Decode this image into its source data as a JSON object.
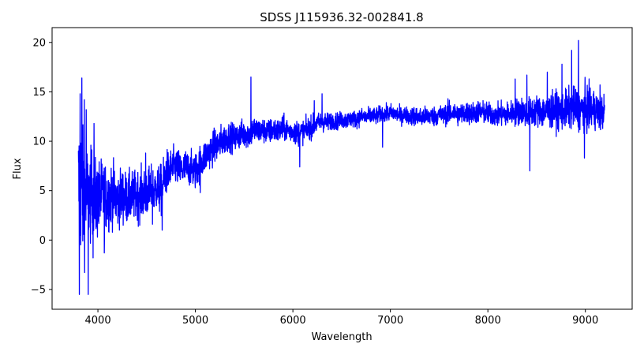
{
  "chart_data": {
    "type": "line",
    "title": "SDSS J115936.32-002841.8",
    "xlabel": "Wavelength",
    "ylabel": "Flux",
    "xlim": [
      3530,
      9480
    ],
    "ylim": [
      -7,
      21.5
    ],
    "xticks": [
      4000,
      5000,
      6000,
      7000,
      8000,
      9000
    ],
    "yticks": [
      -5,
      0,
      5,
      10,
      15,
      20
    ],
    "grid": false,
    "legend": "none",
    "series": [
      {
        "color": "#0000ff",
        "x": [
          3800,
          3815,
          3830,
          3850,
          3875,
          3900,
          3925,
          3950,
          3975,
          4000,
          4050,
          4100,
          4150,
          4200,
          4250,
          4300,
          4350,
          4400,
          4450,
          4500,
          4550,
          4600,
          4650,
          4700,
          4750,
          4800,
          4850,
          4900,
          4950,
          5000,
          5050,
          5100,
          5150,
          5200,
          5250,
          5300,
          5350,
          5400,
          5450,
          5500,
          5550,
          5580,
          5600,
          5650,
          5700,
          5750,
          5800,
          5850,
          5900,
          5950,
          6000,
          6050,
          6100,
          6150,
          6200,
          6250,
          6300,
          6350,
          6400,
          6450,
          6500,
          6550,
          6600,
          6650,
          6700,
          6750,
          6800,
          6850,
          6900,
          6950,
          7000,
          7050,
          7100,
          7150,
          7200,
          7250,
          7300,
          7350,
          7400,
          7450,
          7500,
          7550,
          7600,
          7650,
          7700,
          7750,
          7800,
          7850,
          7900,
          7950,
          8000,
          8050,
          8100,
          8150,
          8200,
          8250,
          8300,
          8350,
          8400,
          8450,
          8500,
          8550,
          8600,
          8650,
          8700,
          8750,
          8800,
          8850,
          8900,
          8950,
          9000,
          9050,
          9100,
          9150,
          9200
        ],
        "y": [
          5.5,
          4.5,
          6.0,
          4.0,
          4.8,
          4.2,
          4.5,
          5.0,
          3.8,
          4.2,
          4.6,
          4.2,
          4.8,
          4.0,
          4.5,
          4.2,
          4.4,
          4.5,
          4.6,
          4.8,
          5.0,
          5.2,
          5.0,
          6.8,
          7.2,
          7.5,
          7.0,
          7.3,
          7.2,
          7.0,
          7.8,
          8.5,
          9.0,
          9.5,
          9.8,
          10.2,
          10.5,
          10.3,
          10.6,
          10.8,
          10.7,
          11.0,
          11.2,
          11.0,
          11.1,
          10.9,
          11.2,
          11.0,
          11.3,
          11.1,
          11.0,
          10.8,
          11.0,
          11.2,
          11.5,
          11.8,
          12.0,
          11.9,
          12.1,
          12.0,
          12.2,
          12.1,
          12.3,
          12.2,
          12.5,
          12.4,
          12.6,
          12.5,
          12.8,
          12.7,
          12.9,
          12.8,
          12.6,
          12.7,
          12.5,
          12.6,
          12.4,
          12.5,
          12.6,
          12.5,
          12.7,
          12.6,
          12.8,
          12.9,
          12.7,
          12.8,
          12.9,
          12.8,
          13.0,
          12.9,
          12.8,
          12.7,
          12.6,
          12.8,
          12.7,
          12.9,
          13.0,
          13.1,
          12.8,
          13.0,
          13.1,
          13.0,
          12.9,
          13.1,
          13.2,
          13.0,
          13.2,
          13.3,
          13.4,
          13.2,
          13.3,
          13.1,
          13.2,
          12.8,
          13.0
        ],
        "noise": [
          5.0,
          5.5,
          5.0,
          4.5,
          4.0,
          3.5,
          3.2,
          3.0,
          3.0,
          2.8,
          2.5,
          2.4,
          2.2,
          2.0,
          2.0,
          1.8,
          1.8,
          1.8,
          1.8,
          1.8,
          1.7,
          1.6,
          1.8,
          1.6,
          1.4,
          1.4,
          1.3,
          1.3,
          1.2,
          1.3,
          1.3,
          1.2,
          1.2,
          1.2,
          1.2,
          1.1,
          1.0,
          1.0,
          1.0,
          1.0,
          1.0,
          1.0,
          1.0,
          0.9,
          0.9,
          0.9,
          0.9,
          0.9,
          0.9,
          0.8,
          0.8,
          0.9,
          0.8,
          0.8,
          0.8,
          0.7,
          0.7,
          0.7,
          0.6,
          0.6,
          0.6,
          0.6,
          0.6,
          0.6,
          0.6,
          0.6,
          0.6,
          0.6,
          0.6,
          0.6,
          0.6,
          0.6,
          0.6,
          0.6,
          0.6,
          0.7,
          0.7,
          0.7,
          0.7,
          0.7,
          0.7,
          0.7,
          0.7,
          0.8,
          0.8,
          0.8,
          0.8,
          0.8,
          0.8,
          0.8,
          0.8,
          0.8,
          0.8,
          0.9,
          0.9,
          0.9,
          1.0,
          1.0,
          1.0,
          1.1,
          1.1,
          1.2,
          1.2,
          1.2,
          1.3,
          1.3,
          1.4,
          1.4,
          1.5,
          1.5,
          1.6,
          1.5,
          1.4,
          1.3,
          1.2
        ],
        "spikes": [
          {
            "x": 3810,
            "y": -5.5
          },
          {
            "x": 3818,
            "y": 14.8
          },
          {
            "x": 3835,
            "y": 16.4
          },
          {
            "x": 3860,
            "y": 14.2
          },
          {
            "x": 3900,
            "y": -5.5
          },
          {
            "x": 3880,
            "y": 13.2
          },
          {
            "x": 3960,
            "y": 11.8
          },
          {
            "x": 3950,
            "y": -1.8
          },
          {
            "x": 4065,
            "y": -1.3
          },
          {
            "x": 4490,
            "y": 8.8
          },
          {
            "x": 4660,
            "y": 1.0
          },
          {
            "x": 4560,
            "y": 1.6
          },
          {
            "x": 5050,
            "y": 4.8
          },
          {
            "x": 5570,
            "y": 16.5
          },
          {
            "x": 6070,
            "y": 7.4
          },
          {
            "x": 6220,
            "y": 14.1
          },
          {
            "x": 6300,
            "y": 14.8
          },
          {
            "x": 6920,
            "y": 9.4
          },
          {
            "x": 7590,
            "y": 14.3
          },
          {
            "x": 8280,
            "y": 16.3
          },
          {
            "x": 8400,
            "y": 16.7
          },
          {
            "x": 8430,
            "y": 7.0
          },
          {
            "x": 8610,
            "y": 17.0
          },
          {
            "x": 8760,
            "y": 17.8
          },
          {
            "x": 8860,
            "y": 19.2
          },
          {
            "x": 8930,
            "y": 20.2
          },
          {
            "x": 8990,
            "y": 8.3
          },
          {
            "x": 9150,
            "y": 15.7
          }
        ]
      }
    ]
  }
}
